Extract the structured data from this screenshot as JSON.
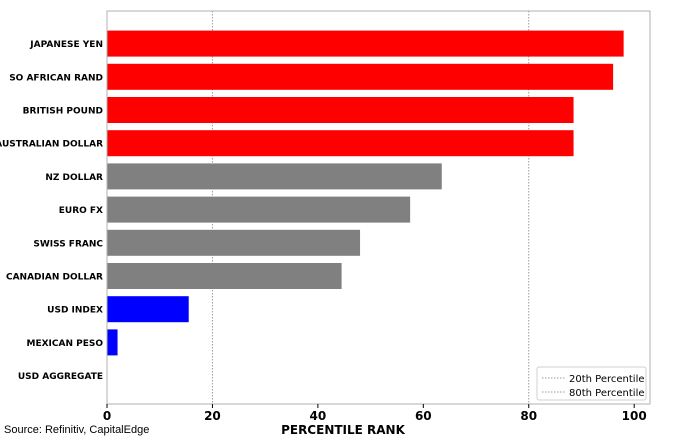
{
  "chart_data": {
    "type": "bar",
    "orientation": "horizontal",
    "categories": [
      "JAPANESE YEN",
      "SO AFRICAN RAND",
      "BRITISH POUND",
      "AUSTRALIAN DOLLAR",
      "NZ DOLLAR",
      "EURO FX",
      "SWISS FRANC",
      "CANADIAN DOLLAR",
      "USD INDEX",
      "MEXICAN PESO",
      "USD AGGREGATE"
    ],
    "values": [
      98,
      96,
      88.5,
      88.5,
      63.5,
      57.5,
      48,
      44.5,
      15.5,
      2,
      0
    ],
    "colors": [
      "#ff0000",
      "#ff0000",
      "#ff0000",
      "#ff0000",
      "#808080",
      "#808080",
      "#808080",
      "#808080",
      "#0000ff",
      "#0000ff",
      "#0000ff"
    ],
    "xlabel": "PERCENTILE RANK",
    "ylabel": "",
    "xlim": [
      0,
      103
    ],
    "xticks": [
      0,
      20,
      40,
      60,
      80,
      100
    ],
    "reference_lines": [
      {
        "name": "20th Percentile",
        "value": 20
      },
      {
        "name": "80th Percentile",
        "value": 80
      }
    ],
    "legend_position": "bottom-right",
    "grid": false
  },
  "source": "Source: Refinitiv, CapitalEdge"
}
